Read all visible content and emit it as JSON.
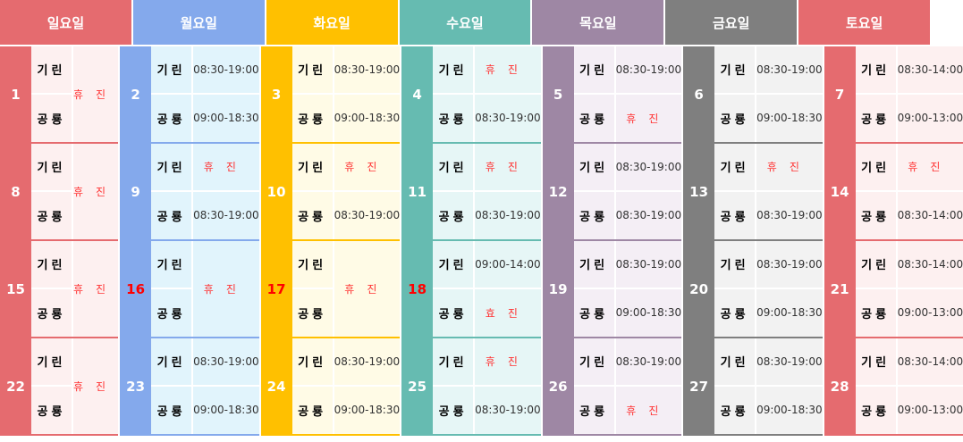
{
  "days": [
    {
      "label": "일요일",
      "color": "#E56B6F",
      "bg": "#FDF0F0"
    },
    {
      "label": "월요일",
      "color": "#84A9EC",
      "bg": "#E1F4FC"
    },
    {
      "label": "화요일",
      "color": "#FFC000",
      "bg": "#FFFBE6"
    },
    {
      "label": "수요일",
      "color": "#66BBB1",
      "bg": "#E6F6F6"
    },
    {
      "label": "목요일",
      "color": "#9E87A4",
      "bg": "#F4EEF5"
    },
    {
      "label": "금요일",
      "color": "#7F7F7F",
      "bg": "#F2F2F2"
    },
    {
      "label": "토요일",
      "color": "#E56B6F",
      "bg": "#FDF0F0"
    }
  ],
  "names": [
    "기린",
    "공룡"
  ],
  "weeks": [
    [
      {
        "date": "1",
        "merged": "휴진"
      },
      {
        "date": "2",
        "a": "08:30-19:00",
        "b": "09:00-18:30"
      },
      {
        "date": "3",
        "a": "08:30-19:00",
        "b": "09:00-18:30"
      },
      {
        "date": "4",
        "a": "휴진",
        "b": "08:30-19:00"
      },
      {
        "date": "5",
        "a": "08:30-19:00",
        "b": "휴진"
      },
      {
        "date": "6",
        "a": "08:30-19:00",
        "b": "09:00-18:30"
      },
      {
        "date": "7",
        "a": "08:30-14:00",
        "b": "09:00-13:00"
      }
    ],
    [
      {
        "date": "8",
        "merged": "휴진"
      },
      {
        "date": "9",
        "a": "휴진",
        "b": "08:30-19:00"
      },
      {
        "date": "10",
        "a": "휴진",
        "b": "08:30-19:00"
      },
      {
        "date": "11",
        "a": "휴진",
        "b": "08:30-19:00"
      },
      {
        "date": "12",
        "a": "08:30-19:00",
        "b": "08:30-19:00"
      },
      {
        "date": "13",
        "a": "휴진",
        "b": "08:30-19:00"
      },
      {
        "date": "14",
        "a": "휴진",
        "b": "08:30-14:00"
      }
    ],
    [
      {
        "date": "15",
        "merged": "휴진"
      },
      {
        "date": "16",
        "red": true,
        "merged": "휴진"
      },
      {
        "date": "17",
        "red": true,
        "merged": "휴진"
      },
      {
        "date": "18",
        "red": true,
        "a": "09:00-14:00",
        "b": "효진"
      },
      {
        "date": "19",
        "a": "08:30-19:00",
        "b": "09:00-18:30"
      },
      {
        "date": "20",
        "a": "08:30-19:00",
        "b": "09:00-18:30"
      },
      {
        "date": "21",
        "a": "08:30-14:00",
        "b": "09:00-13:00"
      }
    ],
    [
      {
        "date": "22",
        "merged": "휴진"
      },
      {
        "date": "23",
        "a": "08:30-19:00",
        "b": "09:00-18:30"
      },
      {
        "date": "24",
        "a": "08:30-19:00",
        "b": "09:00-18:30"
      },
      {
        "date": "25",
        "a": "휴진",
        "b": "08:30-19:00"
      },
      {
        "date": "26",
        "a": "08:30-19:00",
        "b": "휴진"
      },
      {
        "date": "27",
        "a": "08:30-19:00",
        "b": "09:00-18:30"
      },
      {
        "date": "28",
        "a": "08:30-14:00",
        "b": "09:00-13:00"
      }
    ]
  ]
}
